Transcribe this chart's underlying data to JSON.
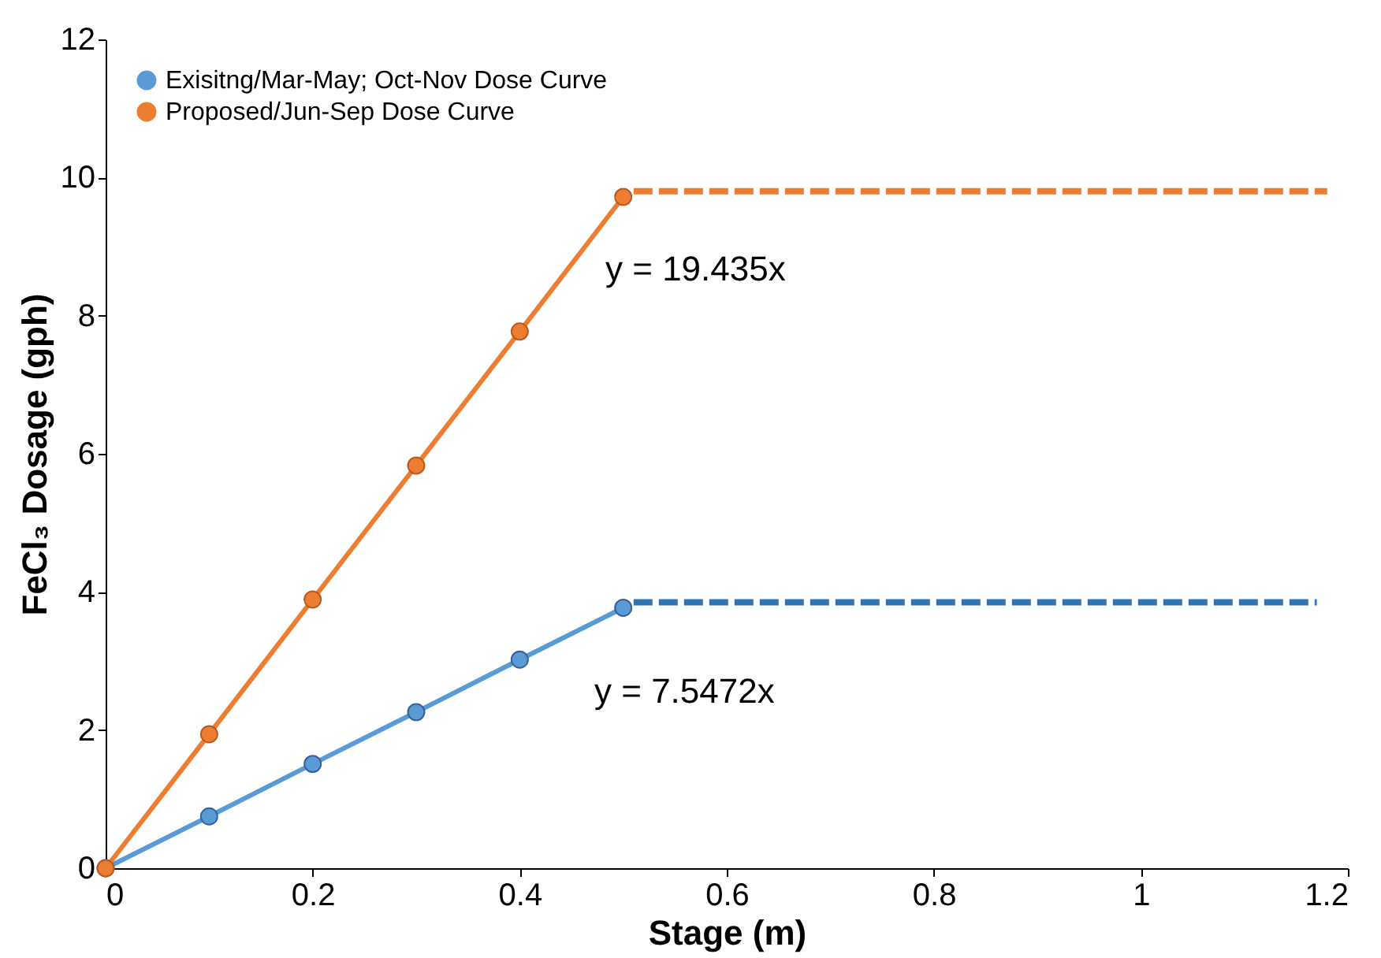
{
  "chart_data": {
    "type": "line",
    "xlabel": "Stage (m)",
    "ylabel": "FeCl₃ Dosage (gph)",
    "xlim": [
      0,
      1.2
    ],
    "xticks": [
      0,
      0.2,
      0.4,
      0.6,
      0.8,
      1,
      1.2
    ],
    "ylim": [
      0,
      12
    ],
    "yticks": [
      0,
      2,
      4,
      6,
      8,
      10,
      12
    ],
    "grid": false,
    "legend": "top left",
    "series": [
      {
        "name": "Exisitng/Mar-May; Oct-Nov Dose Curve",
        "color": "#5b9bd5",
        "x": [
          0,
          0.1,
          0.2,
          0.3,
          0.4,
          0.5
        ],
        "values": [
          0,
          0.75,
          1.51,
          2.26,
          3.02,
          3.77
        ],
        "marker": "circle",
        "line_style": "solid"
      },
      {
        "name": "Proposed/Jun-Sep Dose Curve",
        "color": "#ed7d31",
        "x": [
          0,
          0.1,
          0.2,
          0.3,
          0.4,
          0.5
        ],
        "values": [
          0,
          1.94,
          3.89,
          5.83,
          7.77,
          9.72
        ],
        "marker": "circle",
        "line_style": "solid"
      },
      {
        "color": "#2e75b6",
        "x": [
          0.51,
          1.17
        ],
        "values": [
          3.85,
          3.85
        ],
        "marker": "none",
        "line_style": "dashed"
      },
      {
        "color": "#ed7d31",
        "x": [
          0.51,
          1.18
        ],
        "values": [
          9.8,
          9.8
        ],
        "marker": "none",
        "line_style": "dashed"
      }
    ],
    "annotations": [
      "y = 19.435x",
      "y = 7.5472x"
    ]
  }
}
